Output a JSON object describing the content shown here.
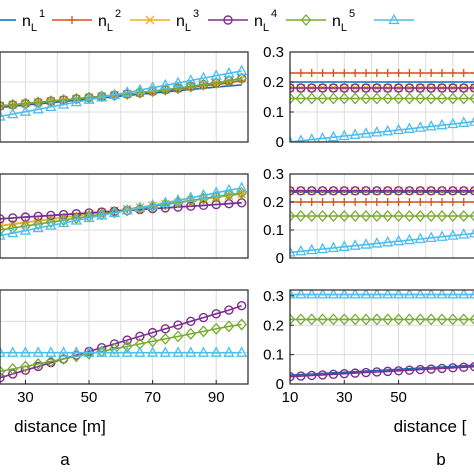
{
  "legend": [
    {
      "base": "n",
      "sub": "L",
      "sup": "1",
      "color": "#0072BD",
      "marker": "none"
    },
    {
      "base": "n",
      "sub": "L",
      "sup": "2",
      "color": "#D95319",
      "marker": "plus"
    },
    {
      "base": "n",
      "sub": "L",
      "sup": "3",
      "color": "#EDB120",
      "marker": "x"
    },
    {
      "base": "n",
      "sub": "L",
      "sup": "4",
      "color": "#7E2F8E",
      "marker": "circle"
    },
    {
      "base": "n",
      "sub": "L",
      "sup": "5",
      "color": "#77AC30",
      "marker": "diamond"
    },
    {
      "base": "",
      "sub": "",
      "sup": "",
      "color": "#4DBEEE",
      "marker": "triangle"
    }
  ],
  "column_labels": {
    "a": "a",
    "b": "b"
  },
  "chart_data": [
    {
      "id": "a1",
      "type": "line",
      "xlabel": "",
      "xlim": [
        22,
        100
      ],
      "ylim": [
        0,
        0.3
      ],
      "x": [
        22,
        26,
        30,
        34,
        38,
        42,
        46,
        50,
        54,
        58,
        62,
        66,
        70,
        74,
        78,
        82,
        86,
        90,
        94,
        98
      ],
      "series": [
        {
          "legend_index": 1,
          "values": [
            0.115,
            0.119,
            0.123,
            0.127,
            0.131,
            0.135,
            0.139,
            0.143,
            0.147,
            0.151,
            0.155,
            0.159,
            0.163,
            0.167,
            0.171,
            0.175,
            0.179,
            0.183,
            0.187,
            0.19
          ]
        },
        {
          "legend_index": 2,
          "values": [
            0.12,
            0.124,
            0.128,
            0.132,
            0.136,
            0.14,
            0.144,
            0.148,
            0.152,
            0.156,
            0.16,
            0.164,
            0.168,
            0.172,
            0.177,
            0.182,
            0.187,
            0.192,
            0.197,
            0.205
          ]
        },
        {
          "legend_index": 3,
          "values": [
            0.12,
            0.124,
            0.128,
            0.132,
            0.136,
            0.14,
            0.144,
            0.148,
            0.152,
            0.156,
            0.16,
            0.164,
            0.169,
            0.174,
            0.179,
            0.185,
            0.191,
            0.197,
            0.204,
            0.212
          ]
        },
        {
          "legend_index": 4,
          "values": [
            0.12,
            0.124,
            0.128,
            0.132,
            0.136,
            0.14,
            0.144,
            0.148,
            0.152,
            0.156,
            0.16,
            0.164,
            0.169,
            0.174,
            0.179,
            0.185,
            0.191,
            0.197,
            0.204,
            0.212
          ]
        },
        {
          "legend_index": 5,
          "values": [
            0.12,
            0.124,
            0.128,
            0.132,
            0.136,
            0.14,
            0.144,
            0.148,
            0.152,
            0.156,
            0.16,
            0.164,
            0.169,
            0.174,
            0.179,
            0.185,
            0.191,
            0.197,
            0.204,
            0.212
          ]
        },
        {
          "legend_index": 6,
          "values": [
            0.085,
            0.093,
            0.101,
            0.109,
            0.117,
            0.125,
            0.133,
            0.141,
            0.149,
            0.157,
            0.165,
            0.173,
            0.181,
            0.189,
            0.197,
            0.205,
            0.213,
            0.221,
            0.229,
            0.237
          ]
        }
      ]
    },
    {
      "id": "b1",
      "type": "line",
      "xlabel": "",
      "xlim": [
        10,
        80
      ],
      "ylim": [
        0,
        0.3
      ],
      "yticks": [
        0,
        0.1,
        0.2,
        0.3
      ],
      "ytick_labels": [
        "0",
        "0.1",
        "0.2",
        "0.3"
      ],
      "x": [
        10,
        14,
        18,
        22,
        26,
        30,
        34,
        38,
        42,
        46,
        50,
        54,
        58,
        62,
        66,
        70,
        74,
        78
      ],
      "series": [
        {
          "legend_index": 1,
          "values": [
            0.2,
            0.2,
            0.2,
            0.2,
            0.2,
            0.2,
            0.2,
            0.2,
            0.2,
            0.2,
            0.2,
            0.2,
            0.2,
            0.2,
            0.2,
            0.2,
            0.2,
            0.2
          ]
        },
        {
          "legend_index": 2,
          "values": [
            0.23,
            0.23,
            0.23,
            0.23,
            0.23,
            0.23,
            0.23,
            0.23,
            0.23,
            0.23,
            0.23,
            0.23,
            0.23,
            0.23,
            0.23,
            0.23,
            0.23,
            0.23
          ]
        },
        {
          "legend_index": 3,
          "values": [
            0.18,
            0.18,
            0.18,
            0.18,
            0.18,
            0.18,
            0.18,
            0.18,
            0.18,
            0.18,
            0.18,
            0.18,
            0.18,
            0.18,
            0.18,
            0.18,
            0.18,
            0.18
          ]
        },
        {
          "legend_index": 4,
          "values": [
            0.18,
            0.18,
            0.18,
            0.18,
            0.18,
            0.18,
            0.18,
            0.18,
            0.18,
            0.18,
            0.18,
            0.18,
            0.18,
            0.18,
            0.18,
            0.18,
            0.18,
            0.18
          ]
        },
        {
          "legend_index": 5,
          "values": [
            0.145,
            0.145,
            0.145,
            0.145,
            0.145,
            0.145,
            0.145,
            0.145,
            0.145,
            0.145,
            0.145,
            0.145,
            0.145,
            0.145,
            0.145,
            0.145,
            0.145,
            0.145
          ]
        },
        {
          "legend_index": 6,
          "values": [
            0.0,
            0.004,
            0.008,
            0.012,
            0.016,
            0.02,
            0.024,
            0.028,
            0.032,
            0.036,
            0.04,
            0.044,
            0.048,
            0.052,
            0.056,
            0.06,
            0.064,
            0.068
          ]
        }
      ]
    },
    {
      "id": "a2",
      "type": "line",
      "xlabel": "",
      "xlim": [
        22,
        100
      ],
      "ylim": [
        0,
        0.3
      ],
      "x": [
        22,
        26,
        30,
        34,
        38,
        42,
        46,
        50,
        54,
        58,
        62,
        66,
        70,
        74,
        78,
        82,
        86,
        90,
        94,
        98
      ],
      "series": [
        {
          "legend_index": 1,
          "values": [
            0.14,
            0.143,
            0.146,
            0.149,
            0.152,
            0.155,
            0.158,
            0.161,
            0.164,
            0.167,
            0.17,
            0.173,
            0.176,
            0.179,
            0.182,
            0.185,
            0.188,
            0.191,
            0.194,
            0.197
          ]
        },
        {
          "legend_index": 2,
          "values": [
            0.115,
            0.121,
            0.127,
            0.133,
            0.139,
            0.145,
            0.151,
            0.157,
            0.163,
            0.169,
            0.175,
            0.181,
            0.187,
            0.193,
            0.199,
            0.205,
            0.211,
            0.217,
            0.223,
            0.228
          ]
        },
        {
          "legend_index": 3,
          "values": [
            0.115,
            0.121,
            0.127,
            0.133,
            0.139,
            0.145,
            0.151,
            0.157,
            0.163,
            0.169,
            0.175,
            0.181,
            0.187,
            0.193,
            0.199,
            0.205,
            0.211,
            0.217,
            0.223,
            0.228
          ]
        },
        {
          "legend_index": 4,
          "values": [
            0.14,
            0.143,
            0.146,
            0.149,
            0.152,
            0.155,
            0.158,
            0.161,
            0.164,
            0.167,
            0.17,
            0.173,
            0.176,
            0.179,
            0.182,
            0.185,
            0.188,
            0.191,
            0.194,
            0.197
          ]
        },
        {
          "legend_index": 5,
          "values": [
            0.1,
            0.107,
            0.114,
            0.121,
            0.128,
            0.135,
            0.142,
            0.149,
            0.156,
            0.163,
            0.17,
            0.177,
            0.184,
            0.191,
            0.198,
            0.205,
            0.212,
            0.219,
            0.226,
            0.232
          ]
        },
        {
          "legend_index": 6,
          "values": [
            0.08,
            0.089,
            0.098,
            0.107,
            0.116,
            0.125,
            0.134,
            0.143,
            0.152,
            0.161,
            0.17,
            0.179,
            0.188,
            0.197,
            0.206,
            0.215,
            0.224,
            0.233,
            0.242,
            0.25
          ]
        }
      ]
    },
    {
      "id": "b2",
      "type": "line",
      "xlabel": "",
      "xlim": [
        10,
        80
      ],
      "ylim": [
        0,
        0.3
      ],
      "yticks": [
        0,
        0.1,
        0.2,
        0.3
      ],
      "ytick_labels": [
        "0",
        "0.1",
        "0.2",
        "0.3"
      ],
      "x": [
        10,
        14,
        18,
        22,
        26,
        30,
        34,
        38,
        42,
        46,
        50,
        54,
        58,
        62,
        66,
        70,
        74,
        78
      ],
      "series": [
        {
          "legend_index": 1,
          "values": [
            0.235,
            0.235,
            0.235,
            0.235,
            0.235,
            0.235,
            0.235,
            0.235,
            0.235,
            0.235,
            0.235,
            0.235,
            0.235,
            0.235,
            0.235,
            0.235,
            0.235,
            0.235
          ]
        },
        {
          "legend_index": 2,
          "values": [
            0.2,
            0.2,
            0.2,
            0.2,
            0.2,
            0.2,
            0.2,
            0.2,
            0.2,
            0.2,
            0.2,
            0.2,
            0.2,
            0.2,
            0.2,
            0.2,
            0.2,
            0.2
          ]
        },
        {
          "legend_index": 3,
          "values": [
            0.24,
            0.24,
            0.24,
            0.24,
            0.24,
            0.24,
            0.24,
            0.24,
            0.24,
            0.24,
            0.24,
            0.24,
            0.24,
            0.24,
            0.24,
            0.24,
            0.24,
            0.24
          ]
        },
        {
          "legend_index": 4,
          "values": [
            0.24,
            0.24,
            0.24,
            0.24,
            0.24,
            0.24,
            0.24,
            0.24,
            0.24,
            0.24,
            0.24,
            0.24,
            0.24,
            0.24,
            0.24,
            0.24,
            0.24,
            0.24
          ]
        },
        {
          "legend_index": 5,
          "values": [
            0.15,
            0.15,
            0.15,
            0.15,
            0.15,
            0.15,
            0.15,
            0.15,
            0.15,
            0.15,
            0.15,
            0.15,
            0.15,
            0.15,
            0.15,
            0.15,
            0.15,
            0.15
          ]
        },
        {
          "legend_index": 6,
          "values": [
            0.02,
            0.024,
            0.028,
            0.032,
            0.036,
            0.04,
            0.044,
            0.048,
            0.052,
            0.056,
            0.06,
            0.064,
            0.068,
            0.072,
            0.076,
            0.08,
            0.084,
            0.088
          ]
        }
      ]
    },
    {
      "id": "a3",
      "type": "line",
      "xlabel": "distance [m]",
      "xlim": [
        22,
        100
      ],
      "ylim": [
        0,
        0.3
      ],
      "xticks": [
        30,
        50,
        70,
        90
      ],
      "xtick_labels": [
        "30",
        "50",
        "70",
        "90"
      ],
      "x": [
        22,
        26,
        30,
        34,
        38,
        42,
        46,
        50,
        54,
        58,
        62,
        66,
        70,
        74,
        78,
        82,
        86,
        90,
        94,
        98
      ],
      "series": [
        {
          "legend_index": 4,
          "values": [
            0.02,
            0.032,
            0.044,
            0.056,
            0.068,
            0.08,
            0.092,
            0.104,
            0.116,
            0.128,
            0.14,
            0.152,
            0.164,
            0.176,
            0.188,
            0.2,
            0.212,
            0.224,
            0.236,
            0.25
          ]
        },
        {
          "legend_index": 5,
          "values": [
            0.04,
            0.048,
            0.056,
            0.064,
            0.072,
            0.08,
            0.088,
            0.096,
            0.104,
            0.112,
            0.12,
            0.128,
            0.136,
            0.144,
            0.152,
            0.16,
            0.168,
            0.176,
            0.184,
            0.19
          ]
        },
        {
          "legend_index": 6,
          "values": [
            0.1,
            0.1,
            0.1,
            0.1,
            0.1,
            0.1,
            0.1,
            0.1,
            0.1,
            0.1,
            0.1,
            0.1,
            0.1,
            0.1,
            0.1,
            0.1,
            0.1,
            0.1,
            0.1,
            0.1
          ]
        }
      ]
    },
    {
      "id": "b3",
      "type": "line",
      "xlabel": "distance [",
      "xlim": [
        10,
        80
      ],
      "ylim": [
        0,
        0.32
      ],
      "xticks": [
        10,
        30,
        50
      ],
      "xtick_labels": [
        "10",
        "30",
        "50"
      ],
      "yticks": [
        0,
        0.1,
        0.2,
        0.3
      ],
      "ytick_labels": [
        "0",
        "0.1",
        "0.2",
        "0.3"
      ],
      "x": [
        10,
        14,
        18,
        22,
        26,
        30,
        34,
        38,
        42,
        46,
        50,
        54,
        58,
        62,
        66,
        70,
        74,
        78
      ],
      "series": [
        {
          "legend_index": 1,
          "values": [
            0.03,
            0.032,
            0.034,
            0.036,
            0.038,
            0.04,
            0.042,
            0.044,
            0.046,
            0.048,
            0.05,
            0.052,
            0.054,
            0.056,
            0.058,
            0.06,
            0.062,
            0.064
          ]
        },
        {
          "legend_index": 4,
          "values": [
            0.025,
            0.027,
            0.029,
            0.031,
            0.033,
            0.035,
            0.037,
            0.039,
            0.041,
            0.043,
            0.045,
            0.047,
            0.049,
            0.051,
            0.053,
            0.055,
            0.057,
            0.059
          ]
        },
        {
          "legend_index": 5,
          "values": [
            0.22,
            0.22,
            0.22,
            0.22,
            0.22,
            0.22,
            0.22,
            0.22,
            0.22,
            0.22,
            0.22,
            0.22,
            0.22,
            0.22,
            0.22,
            0.22,
            0.22,
            0.22
          ]
        },
        {
          "legend_index": 6,
          "values": [
            0.305,
            0.305,
            0.305,
            0.305,
            0.305,
            0.305,
            0.305,
            0.305,
            0.305,
            0.305,
            0.305,
            0.305,
            0.305,
            0.305,
            0.305,
            0.305,
            0.305,
            0.305
          ]
        }
      ]
    }
  ]
}
